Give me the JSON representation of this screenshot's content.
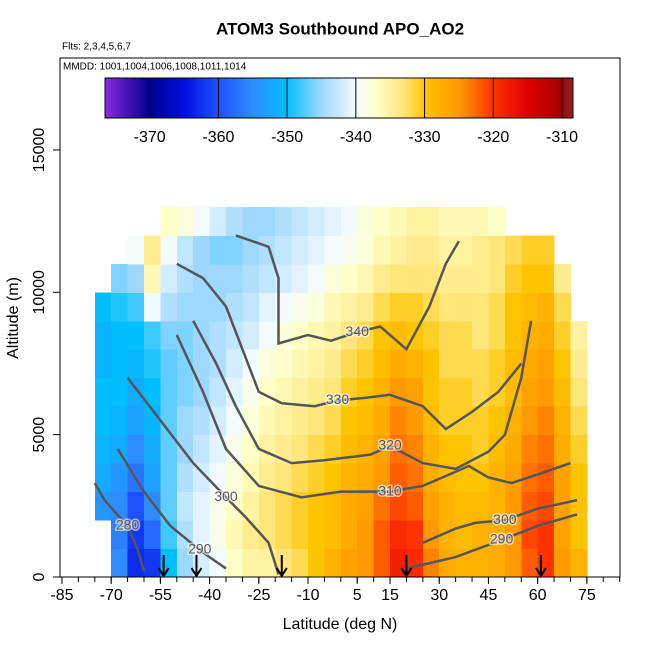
{
  "chart_data": {
    "type": "heatmap",
    "title": "ATOM3 Southbound APO_AO2",
    "notes": [
      "Flts: 2,3,4,5,6,7",
      "MMDD: 1001,1004,1006,1008,1011,1014"
    ],
    "xlabel": "Latitude (deg N)",
    "ylabel": "Altitude (m)",
    "xlim": [
      -85.6,
      85.1
    ],
    "ylim": [
      0,
      18230
    ],
    "xticks": [
      -85,
      -70,
      -55,
      -40,
      -25,
      -10,
      5,
      15,
      30,
      45,
      60,
      75
    ],
    "xminorticks": [
      -85,
      -80,
      -75,
      -70,
      -65,
      -60,
      -55,
      -50,
      -45,
      -40,
      -35,
      -30,
      -25,
      -20,
      -15,
      -10,
      -5,
      0,
      5,
      10,
      15,
      20,
      25,
      30,
      35,
      40,
      45,
      50,
      55,
      60,
      65,
      70,
      75,
      80,
      85
    ],
    "yticks": [
      0,
      5000,
      10000,
      15000
    ],
    "zlim": [
      -376.5,
      -308.4
    ],
    "zticks": [
      -370,
      -360,
      -350,
      -340,
      -330,
      -320,
      -310
    ],
    "colorscale": [
      [
        -376.5,
        "#8a2be2"
      ],
      [
        -370,
        "#00008b"
      ],
      [
        -365,
        "#0010e0"
      ],
      [
        -360,
        "#1e50ff"
      ],
      [
        -355,
        "#2f8cff"
      ],
      [
        -350,
        "#00bfff"
      ],
      [
        -345,
        "#9fd8ff"
      ],
      [
        -340,
        "#f4fbff"
      ],
      [
        -337,
        "#ffffc8"
      ],
      [
        -333,
        "#ffe67a"
      ],
      [
        -330,
        "#ffc400"
      ],
      [
        -325,
        "#ff9a00"
      ],
      [
        -320,
        "#ff3300"
      ],
      [
        -315,
        "#e00000"
      ],
      [
        -310,
        "#a30000"
      ],
      [
        -308.4,
        "#8b2a2a"
      ]
    ],
    "x_edges": [
      -75,
      -70,
      -65,
      -60,
      -55,
      -50,
      -45,
      -40,
      -35,
      -30,
      -25,
      -20,
      -15,
      -10,
      -5,
      0,
      5,
      10,
      15,
      20,
      25,
      30,
      35,
      40,
      45,
      50,
      55,
      60,
      65,
      70,
      75
    ],
    "y_edges": [
      0,
      1000,
      2000,
      3000,
      4000,
      5000,
      6000,
      7000,
      8000,
      9000,
      10000,
      11000,
      12000,
      13000
    ],
    "z": [
      [
        null,
        -355,
        -363,
        -362,
        -350,
        -345,
        -342,
        -340,
        -337,
        -335,
        -335,
        -333,
        -332,
        -330,
        -328,
        -326,
        -325,
        -322,
        -318,
        -319,
        -324,
        -327,
        -328,
        -328,
        -327,
        -325,
        -322,
        -320,
        -325,
        -328
      ],
      [
        null,
        -356,
        -362,
        -358,
        -348,
        -344,
        -341,
        -339,
        -336,
        -334,
        -333,
        -332,
        -331,
        -330,
        -329,
        -327,
        -325,
        -322,
        -319,
        -320,
        -325,
        -328,
        -329,
        -328,
        -327,
        -325,
        -321,
        -320,
        -326,
        -330
      ],
      [
        -354,
        -355,
        -360,
        -355,
        -347,
        -343,
        -341,
        -339,
        -337,
        -335,
        -333,
        -332,
        -331,
        -330,
        -329,
        -327,
        -326,
        -323,
        -321,
        -322,
        -326,
        -328,
        -329,
        -329,
        -328,
        -325,
        -322,
        -321,
        -326,
        -330
      ],
      [
        -352,
        -354,
        -357,
        -353,
        -347,
        -344,
        -342,
        -340,
        -338,
        -336,
        -334,
        -333,
        -332,
        -331,
        -330,
        -328,
        -327,
        -325,
        -322,
        -323,
        -327,
        -329,
        -330,
        -330,
        -328,
        -326,
        -323,
        -322,
        -326,
        -330
      ],
      [
        -351,
        -352,
        -355,
        -352,
        -347,
        -345,
        -343,
        -341,
        -339,
        -337,
        -335,
        -334,
        -333,
        -332,
        -331,
        -329,
        -328,
        -326,
        -323,
        -324,
        -328,
        -330,
        -330,
        -331,
        -329,
        -327,
        -324,
        -323,
        -327,
        -331
      ],
      [
        -350,
        -351,
        -353,
        -351,
        -347,
        -345,
        -344,
        -342,
        -340,
        -338,
        -336,
        -335,
        -334,
        -333,
        -332,
        -330,
        -329,
        -327,
        -324,
        -325,
        -329,
        -331,
        -331,
        -331,
        -330,
        -328,
        -325,
        -324,
        -328,
        -332
      ],
      [
        -350,
        -350,
        -352,
        -350,
        -347,
        -346,
        -345,
        -343,
        -341,
        -339,
        -337,
        -336,
        -335,
        -334,
        -333,
        -331,
        -330,
        -328,
        -325,
        -326,
        -330,
        -331,
        -331,
        -332,
        -331,
        -329,
        -326,
        -325,
        -329,
        -333
      ],
      [
        -351,
        -350,
        -351,
        -349,
        -347,
        -346,
        -345,
        -344,
        -342,
        -340,
        -338,
        -337,
        -336,
        -335,
        -334,
        -332,
        -331,
        -329,
        -327,
        -328,
        -330,
        -332,
        -332,
        -332,
        -331,
        -329,
        -327,
        -326,
        -330,
        -334
      ],
      [
        -351,
        -350,
        -350,
        -348,
        -346,
        -346,
        -345,
        -344,
        -343,
        -342,
        -340,
        -338,
        -337,
        -336,
        -335,
        -333,
        -332,
        -330,
        -329,
        -330,
        -331,
        -332,
        -332,
        -333,
        -332,
        -330,
        -328,
        -327,
        -331,
        -335
      ],
      [
        -350,
        -349,
        -348,
        -340,
        -344,
        -345,
        -345,
        -345,
        -344,
        -343,
        -341,
        -340,
        -339,
        -338,
        -336,
        -335,
        -334,
        -332,
        -331,
        -331,
        -332,
        -333,
        -333,
        -333,
        -332,
        -330,
        -329,
        -328,
        -332,
        null
      ],
      [
        null,
        -346,
        -345,
        -336,
        -342,
        -344,
        -345,
        -345,
        -345,
        -344,
        -343,
        -342,
        -341,
        -340,
        -338,
        -337,
        -336,
        -334,
        -333,
        -333,
        -333,
        -334,
        -334,
        -334,
        -333,
        -331,
        -330,
        -330,
        -334,
        null
      ],
      [
        null,
        null,
        -340,
        -334,
        -340,
        -343,
        -345,
        -346,
        -346,
        -345,
        -344,
        -343,
        -342,
        -341,
        -340,
        -339,
        -338,
        -336,
        -335,
        -334,
        -334,
        -335,
        -335,
        -334,
        -333,
        -332,
        -331,
        -331,
        null,
        null
      ],
      [
        null,
        null,
        null,
        null,
        -337,
        -338,
        -340,
        -342,
        -344,
        -345,
        -345,
        -344,
        -343,
        -342,
        -341,
        -340,
        -338,
        -337,
        -336,
        -335,
        -335,
        -336,
        -336,
        -336,
        -337,
        null,
        null,
        null,
        null,
        null
      ]
    ],
    "contour_color": "#555555",
    "contours": [
      {
        "level": 340,
        "x": [
          -32,
          -22,
          -19,
          -19,
          -10,
          -3,
          5,
          12,
          20,
          27,
          32,
          36
        ],
        "y": [
          12000,
          11600,
          10500,
          8200,
          8500,
          8300,
          8600,
          8800,
          8000,
          9500,
          11000,
          11800
        ]
      },
      {
        "level": 330,
        "x": [
          -50,
          -42,
          -35,
          -30,
          -25,
          -18,
          -8,
          -1,
          8,
          15,
          25,
          32,
          40,
          48,
          55
        ],
        "y": [
          11000,
          10500,
          9500,
          8000,
          6500,
          6100,
          6000,
          6200,
          6300,
          6400,
          6000,
          5200,
          5800,
          6500,
          7500
        ]
      },
      {
        "level": 320,
        "x": [
          -45,
          -38,
          -32,
          -25,
          -15,
          -5,
          9,
          15,
          25,
          35,
          45,
          50,
          55,
          58
        ],
        "y": [
          9000,
          7500,
          6000,
          4500,
          4000,
          4100,
          4300,
          4600,
          4000,
          3800,
          4400,
          5000,
          7000,
          9000
        ]
      },
      {
        "level": 310,
        "x": [
          -50,
          -42,
          -35,
          -25,
          -12,
          0,
          15,
          25,
          39,
          45,
          52,
          60,
          70
        ],
        "y": [
          8500,
          6500,
          4500,
          3200,
          2800,
          3000,
          3000,
          3200,
          3900,
          3500,
          3300,
          3600,
          4000
        ]
      },
      {
        "level": 300,
        "x": [
          -65,
          -55,
          -45,
          -35,
          -29,
          -22,
          -19
        ],
        "y": [
          7000,
          5500,
          4000,
          2800,
          2100,
          1200,
          100
        ]
      },
      {
        "level": 300,
        "x": [
          25,
          35,
          41,
          50,
          60,
          72
        ],
        "y": [
          1200,
          1700,
          1900,
          2000,
          2400,
          2700
        ]
      },
      {
        "level": 290,
        "x": [
          -68,
          -60,
          -52,
          -43,
          -40,
          -35
        ],
        "y": [
          4500,
          3000,
          1800,
          950,
          700,
          300
        ]
      },
      {
        "level": 290,
        "x": [
          20,
          35,
          49,
          60,
          72
        ],
        "y": [
          300,
          700,
          1300,
          1800,
          2200
        ]
      },
      {
        "level": 280,
        "x": [
          -75,
          -72,
          -69,
          -65,
          -62,
          -60
        ],
        "y": [
          3300,
          2700,
          2300,
          1800,
          1000,
          200
        ]
      }
    ],
    "arrows_x": [
      -54,
      -44,
      -18,
      20,
      61
    ]
  }
}
